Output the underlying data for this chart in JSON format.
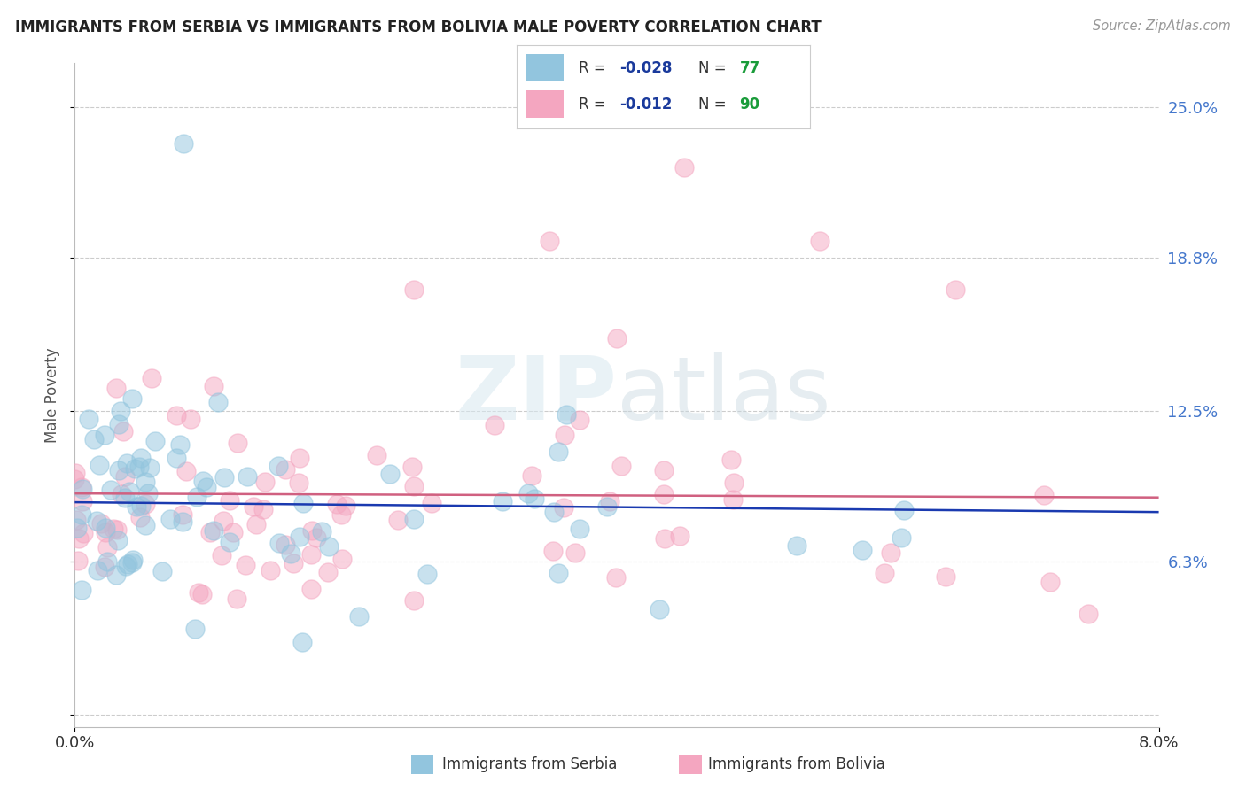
{
  "title": "IMMIGRANTS FROM SERBIA VS IMMIGRANTS FROM BOLIVIA MALE POVERTY CORRELATION CHART",
  "source": "Source: ZipAtlas.com",
  "ylabel": "Male Poverty",
  "color_serbia": "#92c5de",
  "color_bolivia": "#f4a6c0",
  "color_r_value": "#1a3a9c",
  "color_n_value": "#1a9c3a",
  "serbia_r": "-0.028",
  "serbia_n": "77",
  "bolivia_r": "-0.012",
  "bolivia_n": "90",
  "xlim": [
    0.0,
    0.08
  ],
  "ylim": [
    -0.005,
    0.268
  ],
  "ytick_vals": [
    0.0,
    0.063,
    0.125,
    0.188,
    0.25
  ],
  "ytick_labels": [
    "",
    "6.3%",
    "12.5%",
    "18.8%",
    "25.0%"
  ],
  "xtick_vals": [
    0.0,
    0.08
  ],
  "xtick_labels": [
    "0.0%",
    "8.0%"
  ],
  "legend_label1": "Immigrants from Serbia",
  "legend_label2": "Immigrants from Bolivia",
  "serbia_trend_color": "#1a3ab0",
  "bolivia_trend_color": "#d06080",
  "watermark_color": "#d8e8f0",
  "background": "#ffffff"
}
